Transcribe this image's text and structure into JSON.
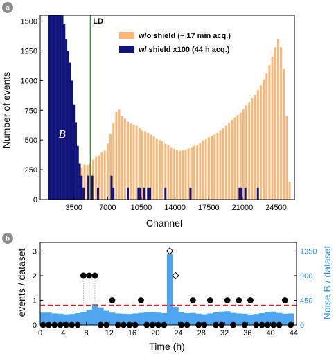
{
  "panel_a": {
    "badge": "a",
    "xlabel": "Channel",
    "ylabel": "Number of events",
    "ld_label": "LD",
    "b_label": "B",
    "xticks": [
      "3500",
      "7000",
      "10500",
      "14000",
      "17500",
      "21000",
      "24500"
    ],
    "yticks": [
      "0",
      "250",
      "500",
      "750",
      "1000",
      "1250",
      "1500"
    ],
    "legend": [
      "w/o shield (~ 17 min acq.)",
      "w/ shield x100 (44 h acq.)"
    ]
  },
  "panel_b": {
    "badge": "b",
    "xlabel": "Time (h)",
    "ylabel_left": "events / dataset",
    "ylabel_right": "Noise B / dataset",
    "xticks": [
      "0",
      "4",
      "8",
      "12",
      "16",
      "20",
      "24",
      "28",
      "32",
      "36",
      "40",
      "44"
    ],
    "yticks_left": [
      "0",
      "1",
      "2",
      "3"
    ],
    "yticks_right": [
      "0",
      "450",
      "900",
      "1350"
    ]
  },
  "colors": {
    "no_shield": "#fbb574",
    "shield": "#10137a",
    "ld_line": "#1e8a1e",
    "noise_bars": "#4da6ef",
    "threshold": "#e02020",
    "badge": "#8c8c8c"
  },
  "chart_data": [
    {
      "type": "bar",
      "panel": "a",
      "xlabel": "Channel",
      "ylabel": "Number of events",
      "xlim": [
        0,
        26400
      ],
      "ylim": [
        0,
        1550
      ],
      "ld_channel": 5200,
      "bin_width": 200,
      "series": [
        {
          "name": "w/o shield (~ 17 min acq.)",
          "points": [
            [
              4200,
              270
            ],
            [
              4500,
              295
            ],
            [
              4800,
              290
            ],
            [
              5100,
              300
            ],
            [
              5400,
              335
            ],
            [
              5700,
              360
            ],
            [
              6000,
              370
            ],
            [
              6300,
              395
            ],
            [
              6600,
              410
            ],
            [
              6900,
              470
            ],
            [
              7200,
              550
            ],
            [
              7500,
              640
            ],
            [
              7800,
              740
            ],
            [
              8100,
              755
            ],
            [
              8400,
              700
            ],
            [
              8700,
              680
            ],
            [
              9000,
              655
            ],
            [
              9300,
              640
            ],
            [
              9600,
              630
            ],
            [
              9900,
              620
            ],
            [
              10200,
              600
            ],
            [
              10500,
              580
            ],
            [
              10800,
              575
            ],
            [
              11100,
              560
            ],
            [
              11400,
              545
            ],
            [
              11700,
              530
            ],
            [
              12000,
              515
            ],
            [
              12300,
              500
            ],
            [
              12600,
              490
            ],
            [
              12900,
              470
            ],
            [
              13200,
              455
            ],
            [
              13500,
              440
            ],
            [
              13800,
              425
            ],
            [
              14100,
              420
            ],
            [
              14400,
              410
            ],
            [
              14700,
              415
            ],
            [
              15000,
              420
            ],
            [
              15300,
              430
            ],
            [
              15600,
              440
            ],
            [
              15900,
              450
            ],
            [
              16200,
              460
            ],
            [
              16500,
              475
            ],
            [
              16800,
              495
            ],
            [
              17100,
              510
            ],
            [
              17400,
              525
            ],
            [
              17700,
              535
            ],
            [
              18000,
              545
            ],
            [
              18300,
              560
            ],
            [
              18600,
              580
            ],
            [
              18900,
              600
            ],
            [
              19200,
              620
            ],
            [
              19500,
              645
            ],
            [
              19800,
              670
            ],
            [
              20100,
              690
            ],
            [
              20400,
              710
            ],
            [
              20700,
              730
            ],
            [
              21000,
              760
            ],
            [
              21300,
              790
            ],
            [
              21600,
              820
            ],
            [
              21900,
              850
            ],
            [
              22200,
              880
            ],
            [
              22500,
              920
            ],
            [
              22800,
              960
            ],
            [
              23100,
              1010
            ],
            [
              23400,
              1060
            ],
            [
              23700,
              1130
            ],
            [
              24000,
              1200
            ],
            [
              24300,
              1280
            ],
            [
              24600,
              1350
            ],
            [
              24900,
              1280
            ],
            [
              25200,
              1100
            ],
            [
              25500,
              700
            ],
            [
              25800,
              150
            ]
          ]
        },
        {
          "name": "w/ shield x100 (44 h acq.)",
          "points": [
            [
              800,
              1550
            ],
            [
              1000,
              1550
            ],
            [
              1200,
              1550
            ],
            [
              1400,
              1550
            ],
            [
              1600,
              1550
            ],
            [
              1800,
              1550
            ],
            [
              2000,
              1550
            ],
            [
              2200,
              1550
            ],
            [
              2400,
              1480
            ],
            [
              2600,
              1350
            ],
            [
              2800,
              1250
            ],
            [
              3000,
              1150
            ],
            [
              3200,
              1000
            ],
            [
              3400,
              800
            ],
            [
              3600,
              650
            ],
            [
              3800,
              450
            ],
            [
              4000,
              300
            ],
            [
              4200,
              200
            ],
            [
              4400,
              100
            ],
            [
              4900,
              200
            ],
            [
              5300,
              200
            ],
            [
              5900,
              100
            ],
            [
              7300,
              200
            ],
            [
              7500,
              100
            ],
            [
              9000,
              100
            ],
            [
              10100,
              100
            ],
            [
              10300,
              100
            ],
            [
              10700,
              100
            ],
            [
              11100,
              100
            ],
            [
              11300,
              100
            ],
            [
              12900,
              100
            ],
            [
              15500,
              100
            ],
            [
              20600,
              100
            ],
            [
              20800,
              100
            ],
            [
              21200,
              100
            ],
            [
              22500,
              100
            ]
          ]
        }
      ]
    },
    {
      "type": "scatter",
      "panel": "b",
      "xlabel": "Time (h)",
      "ylabel": "events / dataset",
      "y2label": "Noise B / dataset",
      "xlim": [
        0,
        44.5
      ],
      "ylim": [
        0,
        3.35
      ],
      "y2lim": [
        0,
        1507
      ],
      "threshold": 0.8,
      "series": [
        {
          "name": "Noise B / dataset",
          "type": "bar",
          "values": [
            225,
            225,
            210,
            205,
            195,
            200,
            215,
            235,
            280,
            380,
            320,
            260,
            225,
            210,
            205,
            200,
            210,
            220,
            235,
            240,
            225,
            215,
            1290,
            330,
            235,
            215,
            220,
            205,
            195,
            210,
            230,
            245,
            250,
            220,
            210,
            205,
            190,
            200,
            215,
            240,
            245,
            220,
            205,
            210
          ]
        },
        {
          "name": "events",
          "type": "scatter",
          "x": [
            0.5,
            1.5,
            2.5,
            3.5,
            4.5,
            5.5,
            6.5,
            7.5,
            8.5,
            9.5,
            10.5,
            11.5,
            12.5,
            13.5,
            14.5,
            15.5,
            16.5,
            17.5,
            18.5,
            19.5,
            20.5,
            21.5,
            22.5,
            23.5,
            24.5,
            25.5,
            26.5,
            27.5,
            28.5,
            29.5,
            30.5,
            31.5,
            32.5,
            33.5,
            34.5,
            35.5,
            36.5,
            37.5,
            38.5,
            39.5,
            40.5,
            41.5,
            42.5,
            43.5
          ],
          "y": [
            0,
            0,
            0,
            0,
            0,
            0,
            0,
            2,
            2,
            2,
            0,
            0,
            1,
            0,
            0,
            0,
            0,
            1,
            0,
            0,
            0,
            0,
            3,
            2,
            0,
            0,
            1,
            0,
            0,
            1,
            0,
            0,
            1,
            0,
            1,
            0,
            1,
            0,
            0,
            0,
            0,
            0,
            1,
            0
          ],
          "open_markers_x": [
            22.5,
            23.5
          ]
        }
      ]
    }
  ]
}
